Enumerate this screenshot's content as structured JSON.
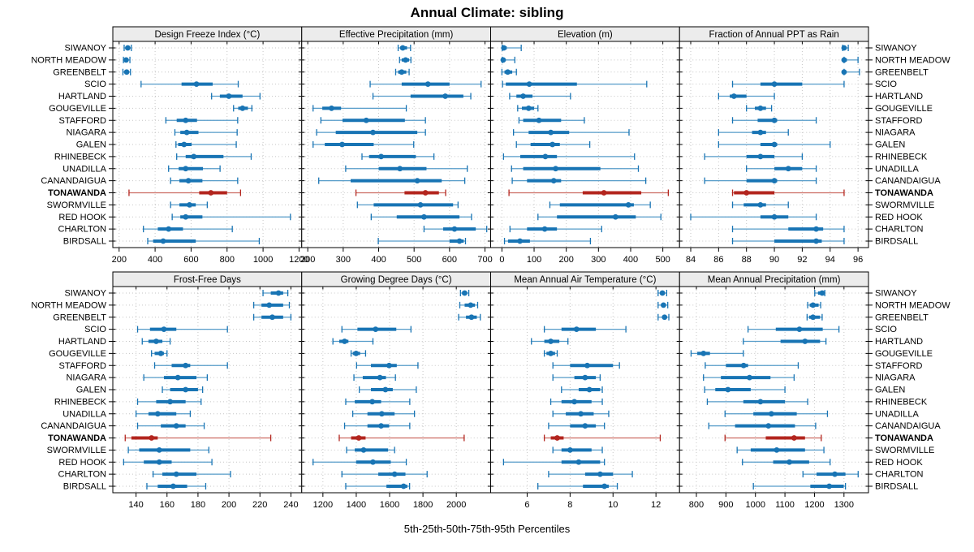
{
  "title": "Annual Climate: sibling",
  "caption": "5th-25th-50th-75th-95th Percentiles",
  "colors": {
    "normal": "#1874B4",
    "normal_whisker": "#569CC9",
    "highlight": "#B3251E",
    "highlight_whisker": "#CC6A61",
    "grid": "#C6C6C6",
    "strip_bg": "#ECECEC",
    "border": "#000000"
  },
  "sites": [
    "SIWANOY",
    "NORTH MEADOW",
    "GREENBELT",
    "SCIO",
    "HARTLAND",
    "GOUGEVILLE",
    "STAFFORD",
    "NIAGARA",
    "GALEN",
    "RHINEBECK",
    "UNADILLA",
    "CANANDAIGUA",
    "TONAWANDA",
    "SWORMVILLE",
    "RED HOOK",
    "CHARLTON",
    "BIRDSALL"
  ],
  "highlight_site": "TONAWANDA",
  "chart_data": {
    "type": "dotplot-percentiles",
    "percentile_labels": [
      "5th",
      "25th",
      "50th",
      "75th",
      "95th"
    ],
    "layout": {
      "rows": 2,
      "cols": 4,
      "site_labels_both_sides": true,
      "grid": "dotted"
    },
    "panels": [
      {
        "title": "Design Freeze Index (°C)",
        "band": 0,
        "col": 0,
        "ticks": [
          200,
          400,
          600,
          800,
          1000,
          1200
        ],
        "xlim": [
          165,
          1215
        ],
        "values": [
          [
            228,
            238,
            248,
            258,
            268
          ],
          [
            224,
            232,
            239,
            248,
            260
          ],
          [
            221,
            230,
            242,
            252,
            263
          ],
          [
            322,
            547,
            630,
            720,
            862
          ],
          [
            714,
            760,
            810,
            886,
            983
          ],
          [
            836,
            862,
            886,
            916,
            938
          ],
          [
            460,
            520,
            570,
            633,
            859
          ],
          [
            510,
            540,
            576,
            641,
            856
          ],
          [
            516,
            528,
            561,
            603,
            851
          ],
          [
            520,
            570,
            615,
            780,
            934
          ],
          [
            475,
            531,
            570,
            666,
            761
          ],
          [
            486,
            535,
            585,
            663,
            859
          ],
          [
            255,
            645,
            710,
            800,
            875
          ],
          [
            486,
            535,
            591,
            626,
            690
          ],
          [
            495,
            540,
            570,
            663,
            1152
          ],
          [
            335,
            415,
            475,
            555,
            829
          ],
          [
            359,
            389,
            445,
            626,
            979
          ]
        ]
      },
      {
        "title": "Effective Precipitation (mm)",
        "band": 0,
        "col": 1,
        "ticks": [
          200,
          300,
          400,
          500,
          600,
          700
        ],
        "xlim": [
          183,
          716
        ],
        "values": [
          [
            455,
            461,
            468,
            480,
            490
          ],
          [
            459,
            465,
            476,
            486,
            491
          ],
          [
            448,
            455,
            465,
            478,
            486
          ],
          [
            376,
            465,
            539,
            600,
            689
          ],
          [
            384,
            490,
            588,
            639,
            660
          ],
          [
            215,
            241,
            267,
            294,
            478
          ],
          [
            237,
            298,
            365,
            474,
            532
          ],
          [
            225,
            279,
            384,
            509,
            532
          ],
          [
            215,
            248,
            297,
            386,
            499
          ],
          [
            353,
            373,
            407,
            505,
            556
          ],
          [
            307,
            400,
            460,
            535,
            650
          ],
          [
            231,
            321,
            509,
            578,
            643
          ],
          [
            336,
            473,
            532,
            570,
            589
          ],
          [
            340,
            386,
            518,
            610,
            624
          ],
          [
            379,
            451,
            528,
            628,
            662
          ],
          [
            528,
            582,
            614,
            674,
            705
          ],
          [
            399,
            600,
            628,
            640,
            645
          ]
        ]
      },
      {
        "title": "Elevation (m)",
        "band": 0,
        "col": 2,
        "ticks": [
          0,
          100,
          200,
          300,
          400,
          500
        ],
        "xlim": [
          -35,
          552
        ],
        "values": [
          [
            1,
            3,
            6,
            15,
            60
          ],
          [
            1,
            2,
            4,
            10,
            40
          ],
          [
            0,
            8,
            18,
            32,
            45
          ],
          [
            2,
            12,
            85,
            233,
            450
          ],
          [
            24,
            45,
            66,
            95,
            213
          ],
          [
            49,
            62,
            83,
            100,
            112
          ],
          [
            53,
            66,
            115,
            184,
            256
          ],
          [
            36,
            83,
            152,
            209,
            395
          ],
          [
            45,
            89,
            157,
            180,
            273
          ],
          [
            5,
            57,
            135,
            171,
            412
          ],
          [
            30,
            66,
            167,
            306,
            424
          ],
          [
            32,
            78,
            161,
            184,
            447
          ],
          [
            22,
            251,
            317,
            433,
            517
          ],
          [
            149,
            180,
            393,
            410,
            461
          ],
          [
            112,
            171,
            353,
            416,
            494
          ],
          [
            25,
            78,
            133,
            171,
            310
          ],
          [
            8,
            19,
            56,
            87,
            275
          ]
        ]
      },
      {
        "title": "Fraction of Annual PPT as Rain",
        "band": 0,
        "col": 3,
        "ticks": [
          84,
          86,
          88,
          90,
          92,
          94,
          96
        ],
        "xlim": [
          83.2,
          96.75
        ],
        "values": [
          [
            94.9,
            95,
            95,
            95.1,
            95.3
          ],
          [
            95,
            95,
            95,
            95.2,
            96
          ],
          [
            95,
            95,
            95,
            95.1,
            96.1
          ],
          [
            87,
            89,
            90,
            92,
            95
          ],
          [
            86,
            86.8,
            87.1,
            88,
            90
          ],
          [
            88,
            88.6,
            89,
            89.4,
            89.8
          ],
          [
            87,
            88.8,
            90,
            90.2,
            93
          ],
          [
            86,
            88.4,
            89,
            89.4,
            91
          ],
          [
            86,
            89,
            90,
            90.2,
            94
          ],
          [
            85,
            88,
            89,
            90,
            92
          ],
          [
            88,
            90,
            91,
            92,
            93
          ],
          [
            85,
            88,
            90,
            90.2,
            93
          ],
          [
            87,
            87.1,
            88,
            90,
            95
          ],
          [
            87,
            87.8,
            89,
            89.4,
            91
          ],
          [
            84,
            89,
            90,
            91,
            93
          ],
          [
            87,
            91,
            93,
            93.5,
            95
          ],
          [
            87,
            90,
            93,
            93.4,
            95
          ]
        ]
      },
      {
        "title": "Frost-Free Days",
        "band": 1,
        "col": 0,
        "ticks": [
          140,
          160,
          180,
          200,
          220,
          240
        ],
        "xlim": [
          125,
          247
        ],
        "values": [
          [
            222,
            227,
            232,
            235,
            238
          ],
          [
            216,
            221,
            226,
            235,
            239
          ],
          [
            216,
            221,
            228,
            235,
            240
          ],
          [
            141,
            149,
            158,
            166,
            199
          ],
          [
            144,
            148,
            153,
            157,
            162
          ],
          [
            150,
            152,
            156,
            158,
            160
          ],
          [
            152,
            163,
            172,
            175,
            199
          ],
          [
            145,
            158,
            167,
            179,
            186
          ],
          [
            157,
            162,
            172,
            180,
            183
          ],
          [
            141,
            153,
            162,
            172,
            182
          ],
          [
            140,
            148,
            154,
            166,
            175
          ],
          [
            141,
            156,
            166,
            172,
            184
          ],
          [
            133,
            137,
            150,
            154,
            227
          ],
          [
            135,
            142,
            155,
            175,
            187
          ],
          [
            132,
            145,
            155,
            163,
            189
          ],
          [
            151,
            157,
            166,
            179,
            201
          ],
          [
            147,
            154,
            164,
            173,
            185
          ]
        ]
      },
      {
        "title": "Growing Degree Days (°C)",
        "band": 1,
        "col": 1,
        "ticks": [
          1200,
          1400,
          1600,
          1800,
          2000
        ],
        "xlim": [
          1073,
          2206
        ],
        "values": [
          [
            2025,
            2035,
            2050,
            2065,
            2075
          ],
          [
            2021,
            2050,
            2086,
            2112,
            2128
          ],
          [
            2014,
            2058,
            2091,
            2123,
            2144
          ],
          [
            1314,
            1407,
            1516,
            1640,
            1728
          ],
          [
            1260,
            1298,
            1330,
            1353,
            1500
          ],
          [
            1369,
            1379,
            1399,
            1423,
            1456
          ],
          [
            1402,
            1488,
            1597,
            1643,
            1770
          ],
          [
            1386,
            1439,
            1542,
            1578,
            1635
          ],
          [
            1418,
            1488,
            1575,
            1619,
            1760
          ],
          [
            1337,
            1391,
            1496,
            1549,
            1721
          ],
          [
            1379,
            1467,
            1553,
            1630,
            1749
          ],
          [
            1330,
            1467,
            1549,
            1597,
            1721
          ],
          [
            1298,
            1369,
            1415,
            1456,
            2047
          ],
          [
            1342,
            1391,
            1444,
            1591,
            1630
          ],
          [
            1141,
            1399,
            1500,
            1607,
            1700
          ],
          [
            1314,
            1532,
            1630,
            1695,
            1825
          ],
          [
            1337,
            1581,
            1684,
            1706,
            1720
          ]
        ]
      },
      {
        "title": "Mean Annual Air Temperature (°C)",
        "band": 1,
        "col": 2,
        "ticks": [
          6,
          8,
          10,
          12
        ],
        "xlim": [
          4.3,
          13.1
        ],
        "values": [
          [
            12.1,
            12.2,
            12.3,
            12.4,
            12.5
          ],
          [
            12.1,
            12.25,
            12.35,
            12.45,
            12.55
          ],
          [
            12.1,
            12.3,
            12.4,
            12.5,
            12.6
          ],
          [
            6.8,
            7.6,
            8.3,
            9.2,
            10.6
          ],
          [
            6.2,
            6.8,
            7.1,
            7.5,
            7.9
          ],
          [
            6.8,
            6.9,
            7.1,
            7.3,
            7.4
          ],
          [
            7.2,
            8.0,
            8.8,
            10.0,
            10.3
          ],
          [
            7.2,
            8.2,
            8.7,
            9.2,
            9.4
          ],
          [
            7.6,
            8.4,
            8.9,
            9.4,
            9.5
          ],
          [
            7.1,
            7.6,
            8.2,
            9.0,
            9.5
          ],
          [
            7.2,
            7.8,
            8.5,
            9.1,
            9.8
          ],
          [
            7.0,
            8.0,
            8.7,
            9.2,
            9.6
          ],
          [
            6.8,
            7.1,
            7.4,
            7.7,
            12.2
          ],
          [
            7.2,
            7.6,
            8.0,
            9.0,
            9.5
          ],
          [
            4.9,
            7.6,
            8.4,
            9.4,
            9.6
          ],
          [
            7.0,
            8.7,
            9.4,
            10.0,
            10.9
          ],
          [
            6.5,
            8.6,
            9.6,
            9.8,
            10.2
          ]
        ]
      },
      {
        "title": "Mean Annual Precipitation (mm)",
        "band": 1,
        "col": 3,
        "ticks": [
          800,
          900,
          1000,
          1100,
          1200,
          1300
        ],
        "xlim": [
          743,
          1383
        ],
        "values": [
          [
            1201,
            1212,
            1226,
            1232,
            1235
          ],
          [
            1177,
            1184,
            1195,
            1214,
            1221
          ],
          [
            1175,
            1182,
            1195,
            1219,
            1226
          ],
          [
            975,
            1069,
            1149,
            1228,
            1283
          ],
          [
            959,
            1085,
            1168,
            1219,
            1239
          ],
          [
            782,
            803,
            824,
            846,
            959
          ],
          [
            830,
            900,
            960,
            975,
            1145
          ],
          [
            824,
            883,
            980,
            1051,
            1131
          ],
          [
            828,
            864,
            907,
            984,
            1100
          ],
          [
            837,
            959,
            1017,
            1100,
            1177
          ],
          [
            897,
            993,
            1054,
            1140,
            1244
          ],
          [
            842,
            931,
            1044,
            1134,
            1204
          ],
          [
            897,
            1035,
            1131,
            1168,
            1223
          ],
          [
            938,
            984,
            1072,
            1168,
            1232
          ],
          [
            956,
            1060,
            1115,
            1182,
            1253
          ],
          [
            1161,
            1207,
            1269,
            1305,
            1348
          ],
          [
            993,
            1186,
            1250,
            1299,
            1305
          ]
        ]
      }
    ]
  }
}
